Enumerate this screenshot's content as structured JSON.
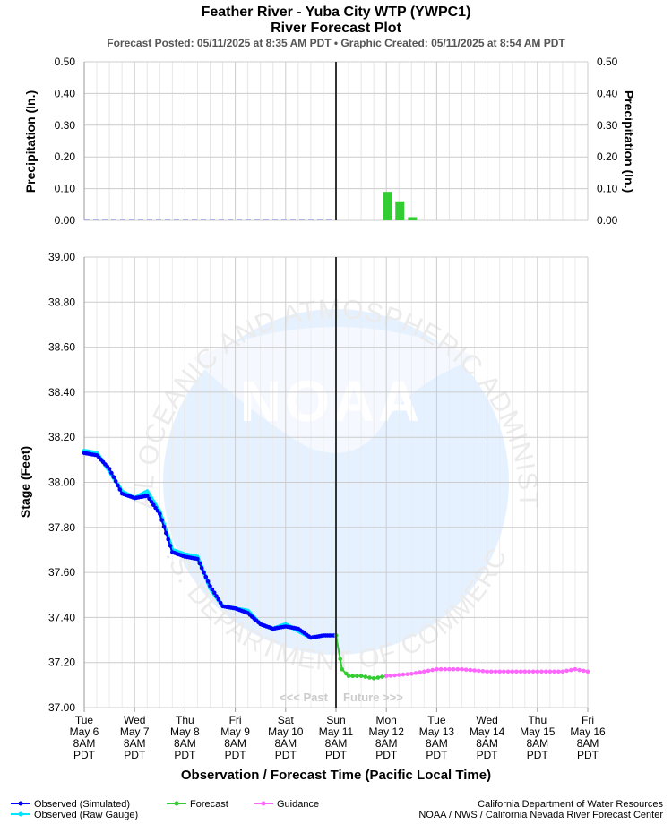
{
  "header": {
    "title": "Feather River - Yuba City WTP (YWPC1)",
    "subtitle": "River Forecast Plot",
    "posted": "Forecast Posted: 05/11/2025 at 8:35 AM PDT  •  Graphic Created: 05/11/2025 at 8:54 AM PDT"
  },
  "footer": {
    "credit1": "California Department of Water Resources",
    "credit2": "NOAA / NWS / California Nevada River Forecast Center"
  },
  "legend": {
    "observed_sim": "Observed (Simulated)",
    "observed_raw": "Observed (Raw Gauge)",
    "forecast": "Forecast",
    "guidance": "Guidance"
  },
  "watermark": {
    "arc_top": "NATIONAL OCEANIC AND ATMOSPHERIC ADMINISTRATION",
    "arc_bottom": "U.S. DEPARTMENT OF COMMERCE",
    "center": "NOAA"
  },
  "markers": {
    "past": "<<< Past",
    "future": "Future >>>"
  },
  "colors": {
    "observed_sim": "#0000ff",
    "observed_raw": "#00e5ff",
    "forecast": "#33cc33",
    "guidance": "#ff66ff",
    "precip_bar": "#33cc33",
    "now_line": "#333333",
    "grid": "#cccccc"
  },
  "chart_data": [
    {
      "type": "bar",
      "panel": "precipitation",
      "ylabel_left": "Precipitation (In.)",
      "ylabel_right": "Precipitation (In.)",
      "ylim": [
        0,
        0.5
      ],
      "yticks": [
        "0.50",
        "0.40",
        "0.30",
        "0.20",
        "0.10",
        "0.00"
      ],
      "x_days": [
        0,
        10
      ],
      "bars": [
        {
          "day": 6.0,
          "value": 0.09
        },
        {
          "day": 6.25,
          "value": 0.06
        },
        {
          "day": 6.5,
          "value": 0.01
        }
      ],
      "observed_baseline": {
        "from_day": 0,
        "to_day": 5,
        "value": 0.0
      }
    },
    {
      "type": "line",
      "panel": "stage",
      "ylabel": "Stage (Feet)",
      "xlabel": "Observation / Forecast Time (Pacific Local Time)",
      "ylim": [
        37.0,
        39.0
      ],
      "yticks": [
        "39.00",
        "38.80",
        "38.60",
        "38.40",
        "38.20",
        "38.00",
        "37.80",
        "37.60",
        "37.40",
        "37.20",
        "37.00"
      ],
      "x_ticks": [
        [
          "Tue",
          "May 6",
          "8AM",
          "PDT"
        ],
        [
          "Wed",
          "May 7",
          "8AM",
          "PDT"
        ],
        [
          "Thu",
          "May 8",
          "8AM",
          "PDT"
        ],
        [
          "Fri",
          "May 9",
          "8AM",
          "PDT"
        ],
        [
          "Sat",
          "May 10",
          "8AM",
          "PDT"
        ],
        [
          "Sun",
          "May 11",
          "8AM",
          "PDT"
        ],
        [
          "Mon",
          "May 12",
          "8AM",
          "PDT"
        ],
        [
          "Tue",
          "May 13",
          "8AM",
          "PDT"
        ],
        [
          "Wed",
          "May 14",
          "8AM",
          "PDT"
        ],
        [
          "Thu",
          "May 15",
          "8AM",
          "PDT"
        ],
        [
          "Fri",
          "May 16",
          "8AM",
          "PDT"
        ]
      ],
      "now_day": 5.0,
      "series": [
        {
          "name": "Observed (Simulated)",
          "x": [
            0,
            0.25,
            0.5,
            0.75,
            1.0,
            1.25,
            1.5,
            1.75,
            2.0,
            2.25,
            2.5,
            2.75,
            3.0,
            3.25,
            3.5,
            3.75,
            4.0,
            4.25,
            4.5,
            4.75,
            5.0
          ],
          "values": [
            38.13,
            38.12,
            38.06,
            37.95,
            37.93,
            37.94,
            37.86,
            37.69,
            37.67,
            37.66,
            37.54,
            37.45,
            37.44,
            37.42,
            37.37,
            37.35,
            37.36,
            37.35,
            37.31,
            37.32,
            37.32
          ]
        },
        {
          "name": "Observed (Raw Gauge)",
          "x": [
            0,
            0.25,
            0.5,
            0.75,
            1.0,
            1.25,
            1.5,
            1.75,
            2.0,
            2.25,
            2.5,
            2.75,
            3.0,
            3.25,
            3.5,
            3.75,
            4.0,
            4.25,
            4.5,
            4.75,
            5.0
          ],
          "values": [
            38.14,
            38.13,
            38.05,
            37.96,
            37.93,
            37.96,
            37.87,
            37.7,
            37.68,
            37.67,
            37.53,
            37.45,
            37.44,
            37.43,
            37.37,
            37.35,
            37.37,
            37.34,
            37.31,
            37.32,
            37.32
          ]
        },
        {
          "name": "Forecast",
          "x": [
            5.0,
            5.12,
            5.25,
            5.5,
            5.75,
            6.0
          ],
          "values": [
            37.32,
            37.17,
            37.14,
            37.14,
            37.13,
            37.14
          ]
        },
        {
          "name": "Guidance",
          "x": [
            6.0,
            6.5,
            7.0,
            7.5,
            8.0,
            8.5,
            9.0,
            9.5,
            9.75,
            10.0
          ],
          "values": [
            37.14,
            37.15,
            37.17,
            37.17,
            37.16,
            37.16,
            37.16,
            37.16,
            37.17,
            37.16
          ]
        }
      ]
    }
  ]
}
